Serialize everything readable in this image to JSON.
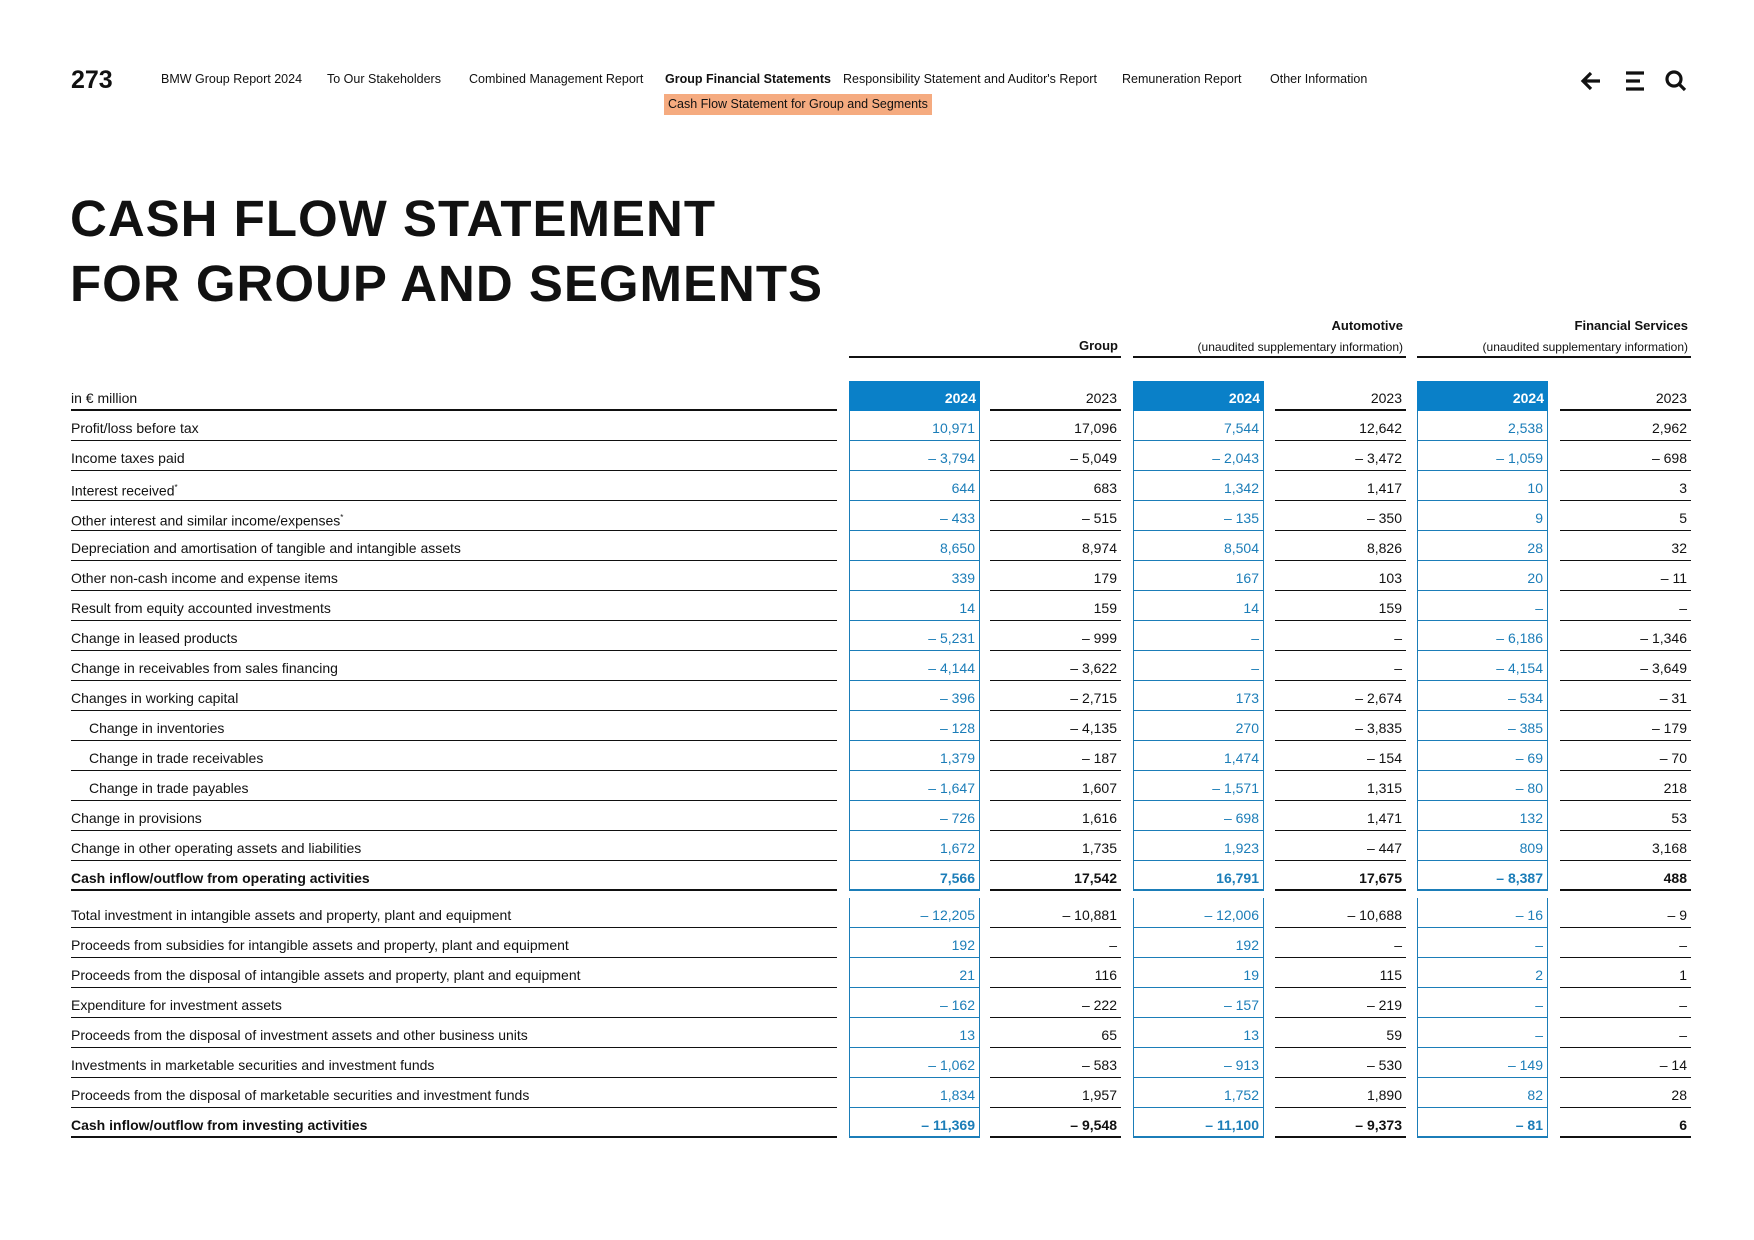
{
  "header": {
    "page_number": "273",
    "nav": [
      "BMW Group Report 2024",
      "To Our Stakeholders",
      "Combined Management Report",
      "Group Financial Statements",
      "Responsibility Statement and Auditor's Report",
      "Remuneration Report",
      "Other Information"
    ],
    "active_nav": 3,
    "subnav": "Cash Flow Statement for Group and Segments"
  },
  "title": [
    "CASH FLOW STATEMENT",
    "FOR GROUP AND SEGMENTS"
  ],
  "table": {
    "groups": [
      {
        "name": "Group"
      },
      {
        "name": "Automotive",
        "note": "(unaudited supplementary information)"
      },
      {
        "name": "Financial Services",
        "note": "(unaudited supplementary information)"
      }
    ],
    "unit": "in € million",
    "years": [
      "2024",
      "2023",
      "2024",
      "2023",
      "2024",
      "2023"
    ],
    "rows": [
      {
        "label": "Profit/loss before tax",
        "values": [
          "10,971",
          "17,096",
          "7,544",
          "12,642",
          "2,538",
          "2,962"
        ]
      },
      {
        "label": "Income taxes paid",
        "values": [
          "– 3,794",
          "– 5,049",
          "– 2,043",
          "– 3,472",
          "– 1,059",
          "– 698"
        ]
      },
      {
        "label": "Interest received",
        "note": "*",
        "values": [
          "644",
          "683",
          "1,342",
          "1,417",
          "10",
          "3"
        ]
      },
      {
        "label": "Other interest and similar income/expenses",
        "note": "*",
        "values": [
          "– 433",
          "– 515",
          "– 135",
          "– 350",
          "9",
          "5"
        ]
      },
      {
        "label": "Depreciation and amortisation of tangible and intangible assets",
        "values": [
          "8,650",
          "8,974",
          "8,504",
          "8,826",
          "28",
          "32"
        ]
      },
      {
        "label": "Other non-cash income and expense items",
        "values": [
          "339",
          "179",
          "167",
          "103",
          "20",
          "– 11"
        ]
      },
      {
        "label": "Result from equity accounted investments",
        "values": [
          "14",
          "159",
          "14",
          "159",
          "–",
          "–"
        ]
      },
      {
        "label": "Change in leased products",
        "values": [
          "– 5,231",
          "– 999",
          "–",
          "–",
          "– 6,186",
          "– 1,346"
        ]
      },
      {
        "label": "Change in receivables from sales financing",
        "values": [
          "– 4,144",
          "– 3,622",
          "–",
          "–",
          "– 4,154",
          "– 3,649"
        ]
      },
      {
        "label": "Changes in working capital",
        "values": [
          "– 396",
          "– 2,715",
          "173",
          "– 2,674",
          "– 534",
          "– 31"
        ]
      },
      {
        "label": "Change in inventories",
        "indent": true,
        "values": [
          "– 128",
          "– 4,135",
          "270",
          "– 3,835",
          "– 385",
          "– 179"
        ]
      },
      {
        "label": "Change in trade receivables",
        "indent": true,
        "values": [
          "1,379",
          "– 187",
          "1,474",
          "– 154",
          "– 69",
          "– 70"
        ]
      },
      {
        "label": "Change in trade payables",
        "indent": true,
        "values": [
          "– 1,647",
          "1,607",
          "– 1,571",
          "1,315",
          "– 80",
          "218"
        ]
      },
      {
        "label": "Change in provisions",
        "values": [
          "– 726",
          "1,616",
          "– 698",
          "1,471",
          "132",
          "53"
        ]
      },
      {
        "label": "Change in other operating assets and liabilities",
        "values": [
          "1,672",
          "1,735",
          "1,923",
          "– 447",
          "809",
          "3,168"
        ]
      },
      {
        "label": "Cash inflow/outflow from operating activities",
        "bold": true,
        "values": [
          "7,566",
          "17,542",
          "16,791",
          "17,675",
          "– 8,387",
          "488"
        ]
      },
      {
        "label": "Total investment in intangible assets and property, plant and equipment",
        "values": [
          "– 12,205",
          "– 10,881",
          "– 12,006",
          "– 10,688",
          "– 16",
          "– 9"
        ]
      },
      {
        "label": "Proceeds from subsidies for intangible assets and property, plant and equipment",
        "values": [
          "192",
          "–",
          "192",
          "–",
          "–",
          "–"
        ]
      },
      {
        "label": "Proceeds from the disposal of intangible assets and property, plant and equipment",
        "values": [
          "21",
          "116",
          "19",
          "115",
          "2",
          "1"
        ]
      },
      {
        "label": "Expenditure for investment assets",
        "values": [
          "– 162",
          "– 222",
          "– 157",
          "– 219",
          "–",
          "–"
        ]
      },
      {
        "label": "Proceeds from the disposal of investment assets and other business units",
        "values": [
          "13",
          "65",
          "13",
          "59",
          "–",
          "–"
        ]
      },
      {
        "label": "Investments in marketable securities and investment funds",
        "values": [
          "– 1,062",
          "– 583",
          "– 913",
          "– 530",
          "– 149",
          "– 14"
        ]
      },
      {
        "label": "Proceeds from the disposal of marketable securities and investment funds",
        "values": [
          "1,834",
          "1,957",
          "1,752",
          "1,890",
          "82",
          "28"
        ]
      },
      {
        "label": "Cash inflow/outflow from investing activities",
        "bold": true,
        "values": [
          "– 11,369",
          "– 9,548",
          "– 11,100",
          "– 9,373",
          "– 81",
          "6"
        ]
      }
    ]
  }
}
